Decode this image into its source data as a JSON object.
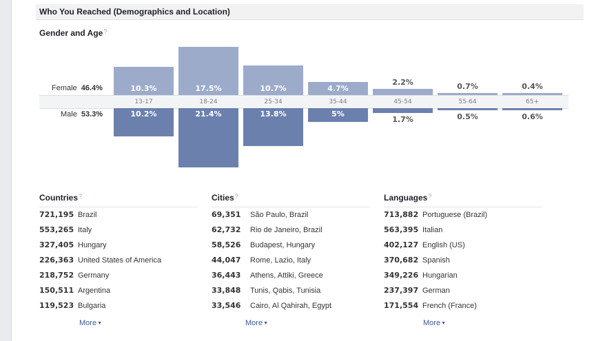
{
  "header": {
    "title": "Who You Reached (Demographics and Location)"
  },
  "gender_age": {
    "title": "Gender and Age",
    "help": "?",
    "female_label": "Female",
    "female_pct": "46.4%",
    "male_label": "Male",
    "male_pct": "53.3%",
    "groups": [
      {
        "age": "13-17",
        "female": 10.3,
        "female_text": "10.3%",
        "male": 10.2,
        "male_text": "10.2%"
      },
      {
        "age": "18-24",
        "female": 17.5,
        "female_text": "17.5%",
        "male": 21.4,
        "male_text": "21.4%"
      },
      {
        "age": "25-34",
        "female": 10.7,
        "female_text": "10.7%",
        "male": 13.8,
        "male_text": "13.8%"
      },
      {
        "age": "35-44",
        "female": 4.7,
        "female_text": "4.7%",
        "male": 5,
        "male_text": "5%"
      },
      {
        "age": "45-54",
        "female": 2.2,
        "female_text": "2.2%",
        "male": 1.7,
        "male_text": "1.7%"
      },
      {
        "age": "55-64",
        "female": 0.7,
        "female_text": "0.7%",
        "male": 0.5,
        "male_text": "0.5%"
      },
      {
        "age": "65+",
        "female": 0.4,
        "female_text": "0.4%",
        "male": 0.6,
        "male_text": "0.6%"
      }
    ],
    "colors": {
      "female": "#9dabcb",
      "male": "#6b80ad"
    }
  },
  "countries": {
    "title": "Countries",
    "help": "?",
    "items": [
      {
        "count": "721,195",
        "name": "Brazil"
      },
      {
        "count": "553,265",
        "name": "Italy"
      },
      {
        "count": "327,405",
        "name": "Hungary"
      },
      {
        "count": "226,363",
        "name": "United States of America"
      },
      {
        "count": "218,752",
        "name": "Germany"
      },
      {
        "count": "150,511",
        "name": "Argentina"
      },
      {
        "count": "119,523",
        "name": "Bulgaria"
      }
    ],
    "more": "More"
  },
  "cities": {
    "title": "Cities",
    "help": "?",
    "items": [
      {
        "count": "69,351",
        "name": "São Paulo, Brazil"
      },
      {
        "count": "62,732",
        "name": "Rio de Janeiro, Brazil"
      },
      {
        "count": "58,526",
        "name": "Budapest, Hungary"
      },
      {
        "count": "44,047",
        "name": "Rome, Lazio, Italy"
      },
      {
        "count": "36,443",
        "name": "Athens, Attiki, Greece"
      },
      {
        "count": "33,848",
        "name": "Tunis, Qabis, Tunisia"
      },
      {
        "count": "33,546",
        "name": "Cairo, Al Qahirah, Egypt"
      }
    ],
    "more": "More"
  },
  "languages": {
    "title": "Languages",
    "help": "?",
    "items": [
      {
        "count": "713,882",
        "name": "Portuguese (Brazil)"
      },
      {
        "count": "563,395",
        "name": "Italian"
      },
      {
        "count": "402,127",
        "name": "English (US)"
      },
      {
        "count": "370,682",
        "name": "Spanish"
      },
      {
        "count": "349,226",
        "name": "Hungarian"
      },
      {
        "count": "237,397",
        "name": "German"
      },
      {
        "count": "171,554",
        "name": "French (France)"
      }
    ],
    "more": "More"
  }
}
